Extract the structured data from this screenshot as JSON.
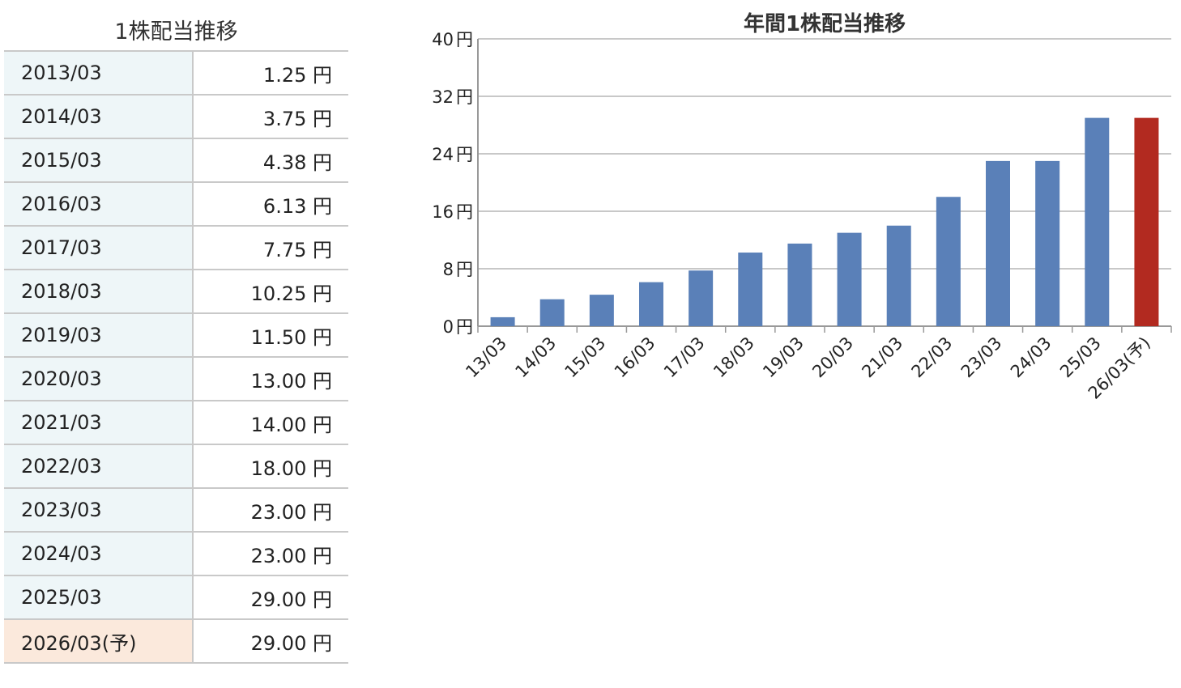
{
  "table": {
    "title": "1株配当推移",
    "unit": "円",
    "rows": [
      {
        "period": "2013/03",
        "amount": "1.25"
      },
      {
        "period": "2014/03",
        "amount": "3.75"
      },
      {
        "period": "2015/03",
        "amount": "4.38"
      },
      {
        "period": "2016/03",
        "amount": "6.13"
      },
      {
        "period": "2017/03",
        "amount": "7.75"
      },
      {
        "period": "2018/03",
        "amount": "10.25"
      },
      {
        "period": "2019/03",
        "amount": "11.50"
      },
      {
        "period": "2020/03",
        "amount": "13.00"
      },
      {
        "period": "2021/03",
        "amount": "14.00"
      },
      {
        "period": "2022/03",
        "amount": "18.00"
      },
      {
        "period": "2023/03",
        "amount": "23.00"
      },
      {
        "period": "2024/03",
        "amount": "23.00"
      },
      {
        "period": "2025/03",
        "amount": "29.00"
      },
      {
        "period": "2026/03(予)",
        "amount": "29.00",
        "forecast": true
      }
    ]
  },
  "chart_data": {
    "type": "bar",
    "title": "年間1株配当推移",
    "categories": [
      "13/03",
      "14/03",
      "15/03",
      "16/03",
      "17/03",
      "18/03",
      "19/03",
      "20/03",
      "21/03",
      "22/03",
      "23/03",
      "24/03",
      "25/03",
      "26/03(予)"
    ],
    "values": [
      1.25,
      3.75,
      4.38,
      6.13,
      7.75,
      10.25,
      11.5,
      13.0,
      14.0,
      18.0,
      23.0,
      23.0,
      29.0,
      29.0
    ],
    "forecast_index": 13,
    "ylim": [
      0,
      40
    ],
    "yticks": [
      0,
      8,
      16,
      24,
      32,
      40
    ],
    "ytick_suffix": " 円",
    "grid": true,
    "xlabel": "",
    "ylabel": "",
    "colors": {
      "bar": "#5a80b8",
      "forecast": "#b22a20",
      "grid": "#c8c8c8",
      "axis": "#999999"
    }
  }
}
